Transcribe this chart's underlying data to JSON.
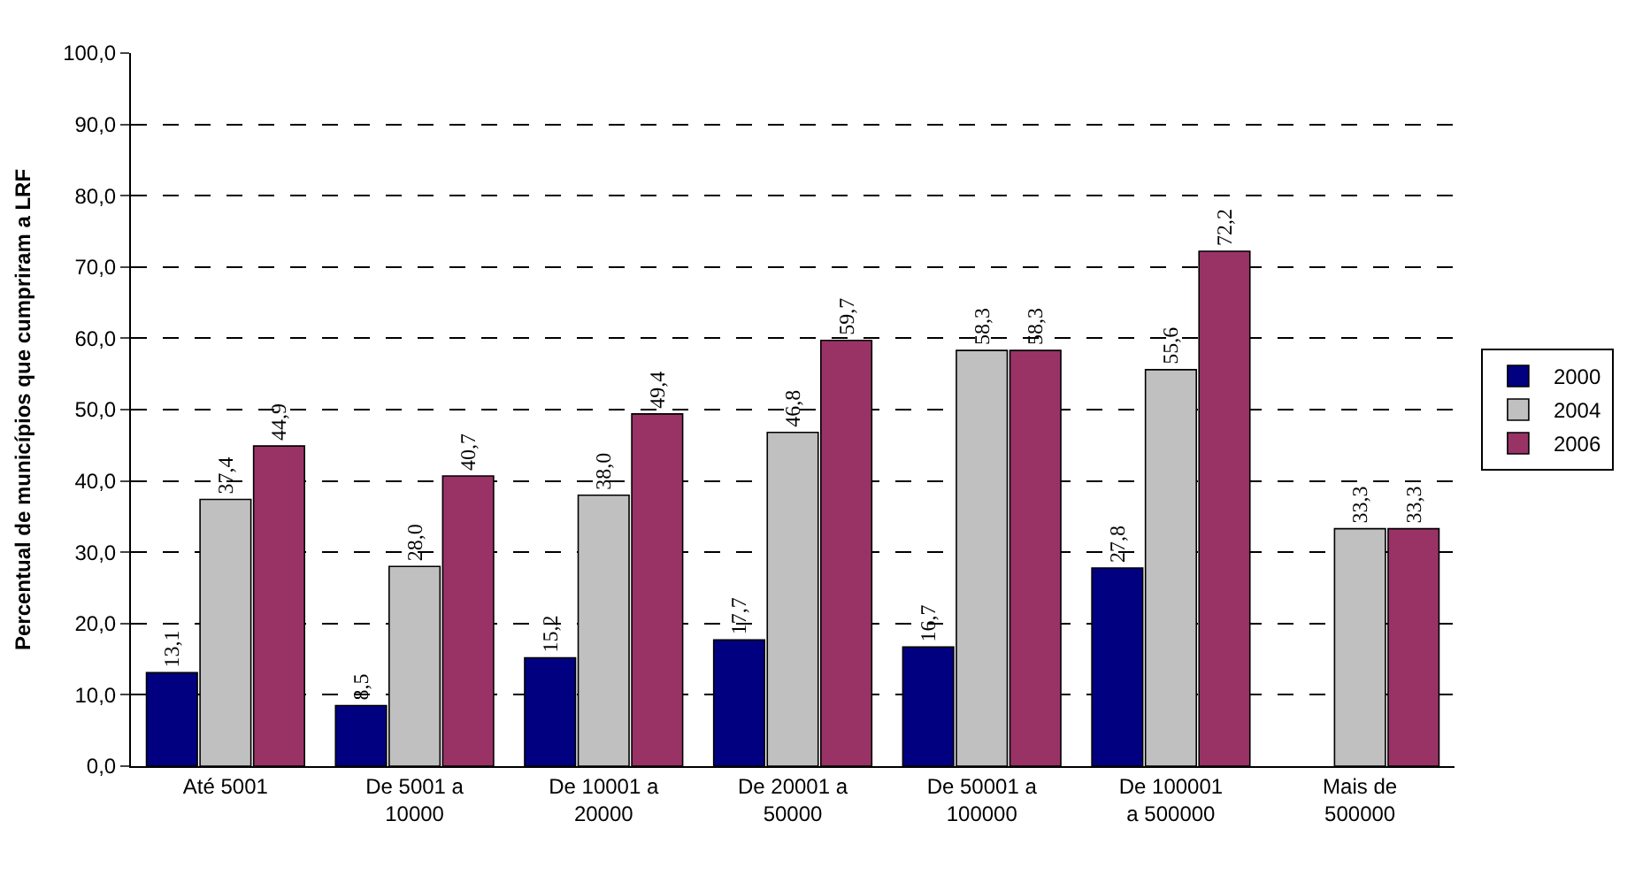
{
  "chart_data": {
    "type": "bar",
    "ylabel": "Percentual de municípios que cumpriram a LRF",
    "categories": [
      "Até 5001",
      "De 5001 a 10000",
      "De 10001 a 20000",
      "De 20001 a 50000",
      "De 50001 a 100000",
      "De 100001 a 500000",
      "Mais de 500000"
    ],
    "series": [
      {
        "name": "2000",
        "color": "#000080",
        "values": [
          13.1,
          8.5,
          15.2,
          17.7,
          16.7,
          27.8,
          null
        ],
        "value_labels": [
          "13,1",
          "8,5",
          "15,2",
          "17,7",
          "16,7",
          "27,8",
          null
        ]
      },
      {
        "name": "2004",
        "color": "#c0c0c0",
        "values": [
          37.4,
          28.0,
          38.0,
          46.8,
          58.3,
          55.6,
          33.3
        ],
        "value_labels": [
          "37,4",
          "28,0",
          "38,0",
          "46,8",
          "58,3",
          "55,6",
          "33,3"
        ]
      },
      {
        "name": "2006",
        "color": "#993366",
        "values": [
          44.9,
          40.7,
          49.4,
          59.7,
          58.3,
          72.2,
          33.3
        ],
        "value_labels": [
          "44,9",
          "40,7",
          "49,4",
          "59,7",
          "58,3",
          "72,2",
          "33,3"
        ]
      }
    ],
    "ylim": [
      0,
      100
    ],
    "yticks": [
      {
        "value": 0,
        "label": "0,0"
      },
      {
        "value": 10,
        "label": "10,0"
      },
      {
        "value": 20,
        "label": "20,0"
      },
      {
        "value": 30,
        "label": "30,0"
      },
      {
        "value": 40,
        "label": "40,0"
      },
      {
        "value": 50,
        "label": "50,0"
      },
      {
        "value": 60,
        "label": "60,0"
      },
      {
        "value": 70,
        "label": "70,0"
      },
      {
        "value": 80,
        "label": "80,0"
      },
      {
        "value": 90,
        "label": "90,0"
      },
      {
        "value": 100,
        "label": "100,0"
      }
    ],
    "grid": "y",
    "legend": "right"
  }
}
